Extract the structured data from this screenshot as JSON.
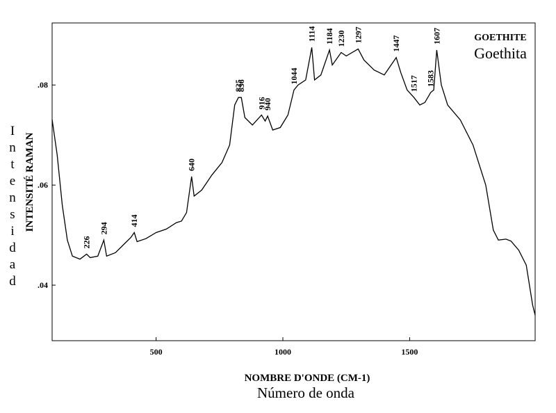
{
  "chart_data": {
    "type": "line",
    "title": "GOETHITE",
    "subtitle": "Goethita",
    "x_label": "NOMBRE D'ONDE (CM-1)",
    "x_label_2": "Número de onda",
    "y_label": "INTENSITÉ RAMAN",
    "y_label_2": "Intensidad",
    "x": [
      90,
      110,
      130,
      150,
      170,
      200,
      226,
      240,
      270,
      294,
      305,
      340,
      380,
      400,
      414,
      425,
      460,
      500,
      540,
      580,
      600,
      620,
      640,
      650,
      680,
      720,
      760,
      790,
      810,
      825,
      836,
      850,
      880,
      916,
      930,
      940,
      960,
      990,
      1020,
      1044,
      1060,
      1090,
      1114,
      1125,
      1150,
      1184,
      1195,
      1230,
      1250,
      1297,
      1320,
      1360,
      1400,
      1447,
      1465,
      1490,
      1517,
      1540,
      1560,
      1583,
      1595,
      1607,
      1625,
      1650,
      1700,
      1750,
      1800,
      1830,
      1850,
      1880,
      1900,
      1930,
      1960,
      1985,
      1995
    ],
    "series": [
      {
        "color": "#000000",
        "values": [
          0.0731,
          0.066,
          0.056,
          0.049,
          0.0458,
          0.0452,
          0.0462,
          0.0455,
          0.0458,
          0.049,
          0.0458,
          0.0465,
          0.0485,
          0.0495,
          0.0505,
          0.0487,
          0.0493,
          0.0505,
          0.0512,
          0.0525,
          0.0528,
          0.0545,
          0.0617,
          0.0578,
          0.059,
          0.062,
          0.0645,
          0.068,
          0.076,
          0.0775,
          0.0775,
          0.0735,
          0.072,
          0.074,
          0.0728,
          0.0738,
          0.071,
          0.0715,
          0.074,
          0.079,
          0.08,
          0.081,
          0.0875,
          0.081,
          0.082,
          0.087,
          0.084,
          0.0865,
          0.0858,
          0.0872,
          0.085,
          0.083,
          0.082,
          0.0855,
          0.0825,
          0.079,
          0.0775,
          0.076,
          0.0765,
          0.0785,
          0.079,
          0.087,
          0.08,
          0.076,
          0.073,
          0.068,
          0.06,
          0.051,
          0.049,
          0.0492,
          0.0488,
          0.047,
          0.044,
          0.036,
          0.034
        ]
      }
    ],
    "peak_labels": [
      226,
      294,
      414,
      640,
      825,
      836,
      916,
      940,
      1044,
      1114,
      1184,
      1230,
      1297,
      1447,
      1517,
      1583,
      1607
    ],
    "xlim": [
      90,
      1995
    ],
    "xticks": [
      500,
      1000,
      1500
    ],
    "ylim": [
      0.0289,
      0.0924
    ],
    "yticks": [
      {
        "value": 0.04,
        "label": ".04"
      },
      {
        "value": 0.06,
        "label": ".06"
      },
      {
        "value": 0.08,
        "label": ".08"
      }
    ]
  }
}
